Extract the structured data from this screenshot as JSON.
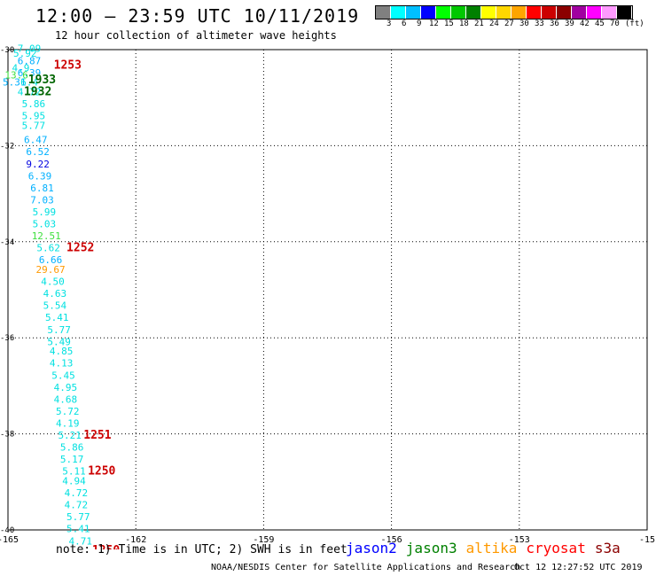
{
  "header": {
    "title": "12:00 – 23:59 UTC 10/11/2019",
    "subtitle": "12 hour collection of altimeter wave heights"
  },
  "legend": {
    "colors": [
      "#808080",
      "#00ffff",
      "#00bfff",
      "#0000ff",
      "#00ff00",
      "#00c800",
      "#008000",
      "#ffff00",
      "#ffd700",
      "#ffa500",
      "#ff0000",
      "#cc0000",
      "#8b0000",
      "#a000a0",
      "#ff00ff",
      "#ff99ff",
      "#000000"
    ],
    "ticks": [
      "3",
      "6",
      "9",
      "12",
      "15",
      "18",
      "21",
      "24",
      "27",
      "30",
      "33",
      "36",
      "39",
      "42",
      "45",
      "70"
    ],
    "unit": "(ft)"
  },
  "chart_data": {
    "type": "scatter",
    "title": "12 hour collection of altimeter wave heights",
    "xlim": [
      -165,
      -150
    ],
    "ylim": [
      -40,
      -30
    ],
    "x_ticks": [
      "-165",
      "-162",
      "-159",
      "-156",
      "-153",
      "-15"
    ],
    "y_ticks": [
      "-30",
      "-32",
      "-34",
      "-36",
      "-38",
      "-40"
    ],
    "grid": true,
    "points": [
      {
        "lon": -164.5,
        "lat": -30.05,
        "label": "7.09",
        "color": "#00e0e0"
      },
      {
        "lon": -164.6,
        "lat": -30.15,
        "label": "5.92",
        "color": "#00e0e0"
      },
      {
        "lon": -164.5,
        "lat": -30.3,
        "label": "6.87",
        "color": "#00b0ff"
      },
      {
        "lon": -164.7,
        "lat": -30.45,
        "label": "4.9",
        "color": "#00e0e0"
      },
      {
        "lon": -164.5,
        "lat": -30.55,
        "label": "6.39",
        "color": "#00b0ff"
      },
      {
        "lon": -164.8,
        "lat": -30.6,
        "label": "13.6",
        "color": "#40e040"
      },
      {
        "lon": -164.85,
        "lat": -30.75,
        "label": "5.31",
        "color": "#00b0ff"
      },
      {
        "lon": -164.5,
        "lat": -30.75,
        "label": "6.4",
        "color": "#00e0e0"
      },
      {
        "lon": -164.5,
        "lat": -30.95,
        "label": "4.72",
        "color": "#00e0e0"
      },
      {
        "lon": -164.4,
        "lat": -31.2,
        "label": "5.86",
        "color": "#00e0e0"
      },
      {
        "lon": -164.4,
        "lat": -31.45,
        "label": "5.95",
        "color": "#00e0e0"
      },
      {
        "lon": -164.4,
        "lat": -31.65,
        "label": "5.77",
        "color": "#00e0e0"
      },
      {
        "lon": -164.35,
        "lat": -31.95,
        "label": "6.47",
        "color": "#00b0ff"
      },
      {
        "lon": -164.3,
        "lat": -32.2,
        "label": "6.52",
        "color": "#00b0ff"
      },
      {
        "lon": -164.3,
        "lat": -32.45,
        "label": "9.22",
        "color": "#0000e0"
      },
      {
        "lon": -164.25,
        "lat": -32.7,
        "label": "6.39",
        "color": "#00b0ff"
      },
      {
        "lon": -164.2,
        "lat": -32.95,
        "label": "6.81",
        "color": "#00b0ff"
      },
      {
        "lon": -164.2,
        "lat": -33.2,
        "label": "7.03",
        "color": "#00b0ff"
      },
      {
        "lon": -164.15,
        "lat": -33.45,
        "label": "5.99",
        "color": "#00e0e0"
      },
      {
        "lon": -164.15,
        "lat": -33.7,
        "label": "5.03",
        "color": "#00e0e0"
      },
      {
        "lon": -164.1,
        "lat": -33.95,
        "label": "12.51",
        "color": "#40e040"
      },
      {
        "lon": -164.05,
        "lat": -34.2,
        "label": "5.62",
        "color": "#00e0e0"
      },
      {
        "lon": -164.0,
        "lat": -34.45,
        "label": "6.66",
        "color": "#00b0ff"
      },
      {
        "lon": -164.0,
        "lat": -34.65,
        "label": "29.67",
        "color": "#ff9900"
      },
      {
        "lon": -163.95,
        "lat": -34.9,
        "label": "4.50",
        "color": "#00e0e0"
      },
      {
        "lon": -163.9,
        "lat": -35.15,
        "label": "4.63",
        "color": "#00e0e0"
      },
      {
        "lon": -163.9,
        "lat": -35.4,
        "label": "5.54",
        "color": "#00e0e0"
      },
      {
        "lon": -163.85,
        "lat": -35.65,
        "label": "5.41",
        "color": "#00e0e0"
      },
      {
        "lon": -163.8,
        "lat": -35.9,
        "label": "5.77",
        "color": "#00e0e0"
      },
      {
        "lon": -163.8,
        "lat": -36.15,
        "label": "5.49",
        "color": "#00e0e0"
      },
      {
        "lon": -163.75,
        "lat": -36.35,
        "label": "4.85",
        "color": "#00e0e0"
      },
      {
        "lon": -163.75,
        "lat": -36.6,
        "label": "4.13",
        "color": "#00e0e0"
      },
      {
        "lon": -163.7,
        "lat": -36.85,
        "label": "5.45",
        "color": "#00e0e0"
      },
      {
        "lon": -163.65,
        "lat": -37.1,
        "label": "4.95",
        "color": "#00e0e0"
      },
      {
        "lon": -163.65,
        "lat": -37.35,
        "label": "4.68",
        "color": "#00e0e0"
      },
      {
        "lon": -163.6,
        "lat": -37.6,
        "label": "5.72",
        "color": "#00e0e0"
      },
      {
        "lon": -163.6,
        "lat": -37.85,
        "label": "4.19",
        "color": "#00e0e0"
      },
      {
        "lon": -163.55,
        "lat": -38.1,
        "label": "5.21",
        "color": "#00e0e0"
      },
      {
        "lon": -163.5,
        "lat": -38.35,
        "label": "5.86",
        "color": "#00e0e0"
      },
      {
        "lon": -163.5,
        "lat": -38.6,
        "label": "5.17",
        "color": "#00e0e0"
      },
      {
        "lon": -163.45,
        "lat": -38.85,
        "label": "5.11",
        "color": "#00e0e0"
      },
      {
        "lon": -163.45,
        "lat": -39.05,
        "label": "4.94",
        "color": "#00e0e0"
      },
      {
        "lon": -163.4,
        "lat": -39.3,
        "label": "4.72",
        "color": "#00e0e0"
      },
      {
        "lon": -163.4,
        "lat": -39.55,
        "label": "4.72",
        "color": "#00e0e0"
      },
      {
        "lon": -163.35,
        "lat": -39.8,
        "label": "5.77",
        "color": "#00e0e0"
      },
      {
        "lon": -163.35,
        "lat": -40.05,
        "label": "5.41",
        "color": "#00e0e0"
      },
      {
        "lon": -163.3,
        "lat": -40.3,
        "label": "4.71",
        "color": "#00e0e0"
      },
      {
        "lon": -163.3,
        "lat": -40.55,
        "label": "5.58",
        "color": "#00e0e0"
      }
    ],
    "time_labels": [
      {
        "lon": -163.6,
        "lat": -30.4,
        "label": "1253",
        "color": "#cc0000"
      },
      {
        "lon": -164.2,
        "lat": -30.7,
        "label": "1933",
        "color": "#006400"
      },
      {
        "lon": -164.3,
        "lat": -30.95,
        "label": "1932",
        "color": "#006400"
      },
      {
        "lon": -163.3,
        "lat": -34.2,
        "label": "1252",
        "color": "#cc0000"
      },
      {
        "lon": -162.9,
        "lat": -38.1,
        "label": "1251",
        "color": "#cc0000"
      },
      {
        "lon": -162.8,
        "lat": -38.85,
        "label": "1250",
        "color": "#cc0000"
      },
      {
        "lon": -162.7,
        "lat": -40.5,
        "label": "1250",
        "color": "#cc0000"
      }
    ]
  },
  "note": "note: 1) Time is in UTC; 2) SWH is in feet",
  "missions": [
    {
      "name": "jason2",
      "color": "#0000ff"
    },
    {
      "name": "jason3",
      "color": "#008000"
    },
    {
      "name": "altika",
      "color": "#ff9900"
    },
    {
      "name": "cryosat",
      "color": "#ff0000"
    },
    {
      "name": "s3a",
      "color": "#8b0000"
    }
  ],
  "footer": {
    "center": "NOAA/NESDIS Center for Satellite Applications and Research",
    "timestamp": "Oct 12 12:27:52 UTC 2019"
  }
}
